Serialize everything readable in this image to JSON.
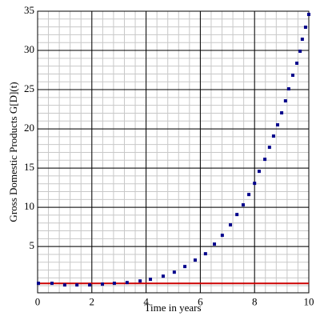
{
  "chart_data": {
    "type": "scatter",
    "xlabel": "Time in years",
    "ylabel": "Gross Domestic Products G[D](t)",
    "x": [
      0.03,
      0.53,
      1.0,
      1.45,
      1.92,
      2.39,
      2.83,
      3.3,
      3.78,
      4.16,
      4.63,
      5.04,
      5.43,
      5.81,
      6.19,
      6.52,
      6.81,
      7.11,
      7.35,
      7.58,
      7.79,
      8.0,
      8.17,
      8.38,
      8.55,
      8.7,
      8.85,
      9.0,
      9.14,
      9.26,
      9.41,
      9.56,
      9.68,
      9.76,
      9.88,
      10.0
    ],
    "series": [
      {
        "color": "#00008b",
        "values": [
          0.31,
          0.31,
          0.1,
          0.1,
          0.1,
          0.2,
          0.31,
          0.41,
          0.61,
          0.82,
          1.22,
          1.73,
          2.45,
          3.27,
          4.08,
          5.31,
          6.43,
          7.76,
          9.08,
          10.31,
          11.63,
          13.06,
          14.59,
          16.12,
          17.65,
          19.08,
          20.51,
          22.04,
          23.57,
          25.1,
          26.84,
          28.37,
          29.9,
          31.43,
          32.96,
          34.59
        ]
      }
    ],
    "hline": {
      "y": 0.3,
      "color": "#cc0000"
    },
    "xlim": [
      0,
      10
    ],
    "xticks": [
      0,
      2,
      4,
      6,
      8,
      10
    ],
    "ylim": [
      -0.9,
      35
    ],
    "yticks": [
      5,
      10,
      15,
      20,
      25,
      30,
      35
    ],
    "grid": true,
    "minor_grid": {
      "x": 0.4,
      "y": 1
    }
  }
}
